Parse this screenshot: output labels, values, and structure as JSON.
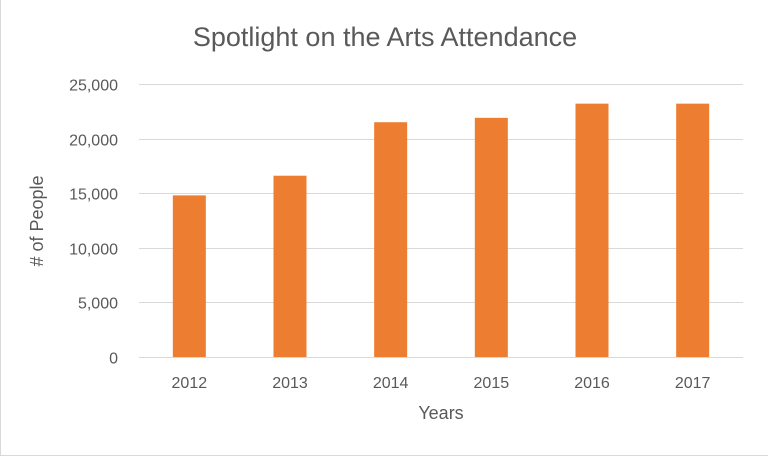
{
  "chart_data": {
    "type": "bar",
    "title": "Spotlight on the Arts Attendance",
    "xlabel": "Years",
    "ylabel": "# of People",
    "categories": [
      "2012",
      "2013",
      "2014",
      "2015",
      "2016",
      "2017"
    ],
    "values": [
      14800,
      16600,
      21500,
      21900,
      23200,
      23200
    ],
    "ylim": [
      0,
      25000
    ],
    "yticks": [
      0,
      5000,
      10000,
      15000,
      20000,
      25000
    ],
    "ytick_labels": [
      "0",
      "5,000",
      "10,000",
      "15,000",
      "20,000",
      "25,000"
    ],
    "grid": true,
    "legend": "none",
    "colors": {
      "bar": "#ed7d31",
      "grid": "#d9d9d9",
      "text": "#595959"
    }
  }
}
